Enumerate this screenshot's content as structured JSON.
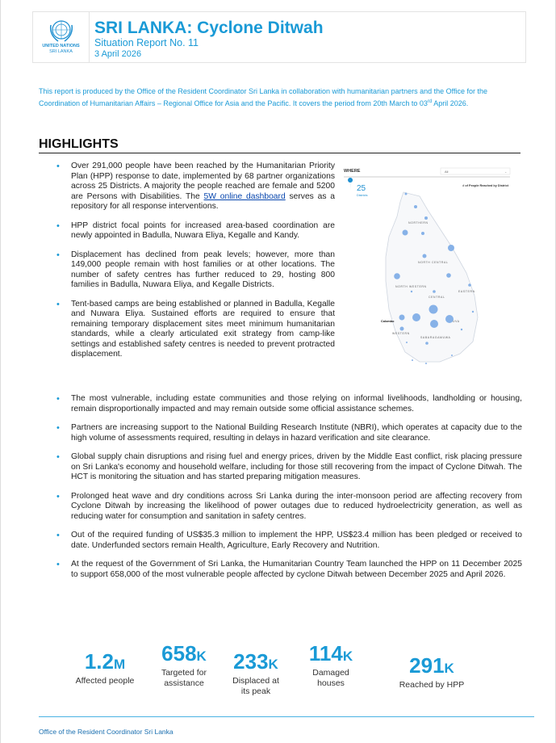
{
  "header": {
    "org_line1": "UNITED NATIONS",
    "org_line2": "SRI LANKA",
    "title": "SRI LANKA: Cyclone Ditwah",
    "subtitle": "Situation Report No. 11",
    "date": "3 April 2026"
  },
  "intro": {
    "text_a": "This report is produced by the Office of the Resident Coordinator Sri Lanka in collaboration with humanitarian partners and the Office for the Coordination of Humanitarian Affairs – Regional Office for Asia and the Pacific. It covers the period from 20th March to 03",
    "sup": "rd",
    "text_b": " April 2026."
  },
  "highlights": {
    "title": "HIGHLIGHTS",
    "b1_a": "Over 291,000 people have been reached by the Humanitarian Priority Plan (HPP) response to date, implemented by 68 partner organizations across 25 Districts. A majority the people reached are female and 5200 are Persons with Disabilities. The ",
    "b1_link": "5W online dashboard",
    "b1_b": " serves as a repository for all response interventions.",
    "b2": "HPP district focal points for increased area-based coordination are newly appointed in Badulla, Nuwara Eliya, Kegalle and Kandy.",
    "b3": "Displacement has declined from peak levels; however, more than 149,000 people remain with host families or at other locations. The number of safety centres has further reduced to 29, hosting 800 families in Badulla, Nuwara Eliya, and Kegalle Districts.",
    "b4": "Tent-based camps are being established or planned in Badulla, Kegalle and Nuwara Eliya. Sustained efforts are required to ensure that remaining temporary displacement sites meet minimum humanitarian standards, while a clearly articulated exit strategy from camp-like settings and established safety centres is needed to prevent protracted displacement.",
    "b5": "The most vulnerable, including estate communities and those relying on informal livelihoods, landholding or housing, remain disproportionally impacted and may remain outside some official assistance schemes.",
    "b6": "Partners are increasing support to the National Building Research Institute (NBRI), which operates at capacity due to the high volume of assessments required, resulting in delays in hazard verification and site clearance.",
    "b7": "Global supply chain disruptions and rising fuel and energy prices, driven by the Middle East conflict, risk placing pressure on Sri Lanka's economy and household welfare, including for those still recovering from the impact of Cyclone Ditwah. The HCT is monitoring the situation and has started preparing mitigation measures.",
    "b8": "Prolonged heat wave and dry conditions across Sri Lanka during the inter-monsoon period are affecting recovery from Cyclone Ditwah by increasing the likelihood of power outages due to reduced hydroelectricity generation, as well as reducing water for consumption and sanitation in safety centres.",
    "b9": "Out of the required funding of US$35.3 million to implement the HPP, US$23.4 million has been pledged or received to date. Underfunded sectors remain Health, Agriculture, Early Recovery and Nutrition.",
    "b10": "At the request of the Government of Sri Lanka, the Humanitarian Country Team launched the HPP on 11 December 2025 to support 658,000 of the most vulnerable people affected by cyclone Ditwah between December 2025 and April 2026."
  },
  "map": {
    "where_label": "WHERE",
    "filter_value": "All",
    "count": "25",
    "count_label": "Districts",
    "legend": "# of People Reached by District",
    "city": "Colombo",
    "regions": [
      "NORTHERN",
      "NORTH CENTRAL",
      "NORTH WESTERN",
      "CENTRAL",
      "EASTERN",
      "WESTERN",
      "SABARAGAMUWA",
      "UVA"
    ],
    "accent": "#7aaae6"
  },
  "stats": [
    {
      "value": "1.2",
      "unit": "M",
      "label": "Affected people"
    },
    {
      "value": "658",
      "unit": "K",
      "label": "Targeted for assistance"
    },
    {
      "value": "233",
      "unit": "K",
      "label": "Displaced at its peak"
    },
    {
      "value": "114",
      "unit": "K",
      "label": "Damaged houses"
    },
    {
      "value": "291",
      "unit": "K",
      "label": "Reached by HPP"
    }
  ],
  "footer": "Office of the Resident Coordinator Sri Lanka"
}
